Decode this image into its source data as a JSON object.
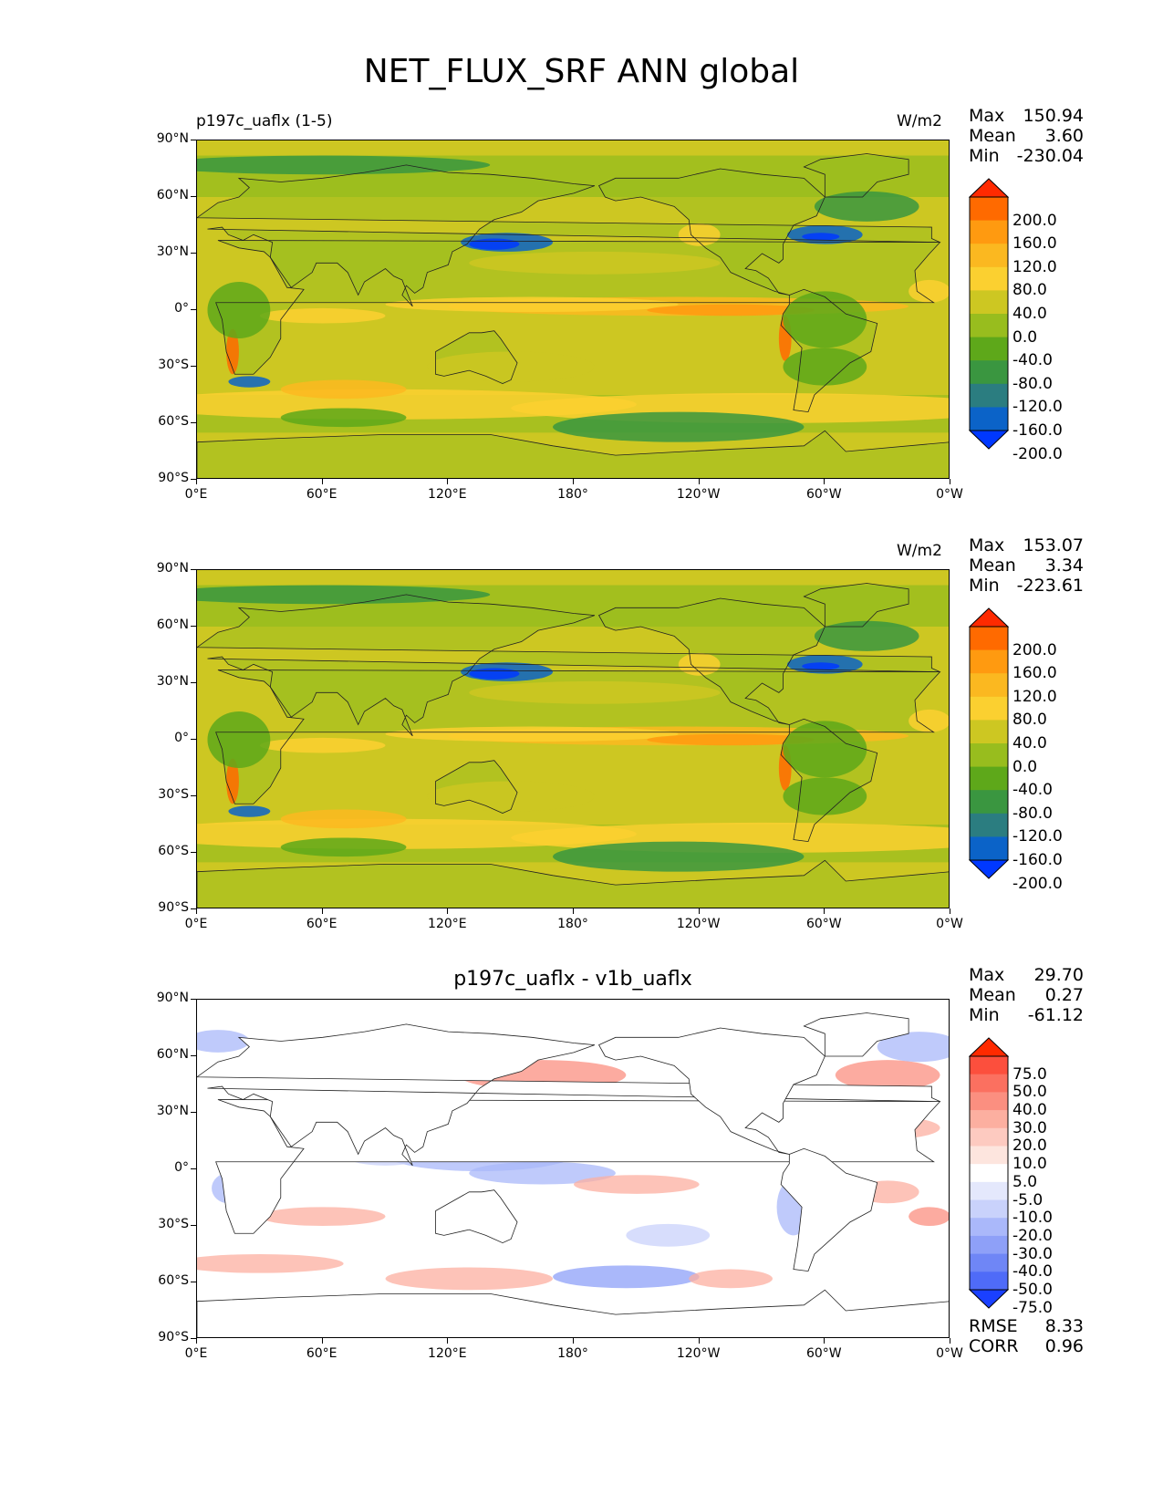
{
  "title": "NET_FLUX_SRF ANN global",
  "lat_ticks": [
    "90°N",
    "60°N",
    "30°N",
    "0°",
    "30°S",
    "60°S",
    "90°S"
  ],
  "lon_ticks": [
    "0°E",
    "60°E",
    "120°E",
    "180°",
    "120°W",
    "60°W",
    "0°W"
  ],
  "panels": [
    {
      "left_label": "p197c_uaflx (1-5)",
      "center_label": "",
      "units": "W/m2",
      "stats": [
        {
          "label": "Max",
          "value": "150.94"
        },
        {
          "label": "Mean",
          "value": "3.60"
        },
        {
          "label": "Min",
          "value": "-230.04"
        }
      ],
      "colorbar_labels": [
        "200.0",
        "160.0",
        "120.0",
        "80.0",
        "40.0",
        "0.0",
        "-40.0",
        "-80.0",
        "-120.0",
        "-160.0",
        "-200.0"
      ],
      "colorbar_colors": [
        "#ff2a00",
        "#ff6a00",
        "#ff9a10",
        "#fbb820",
        "#fbd030",
        "#cdc722",
        "#98bd1e",
        "#5ea81a",
        "#3a9640",
        "#2b7d80",
        "#0b63c8",
        "#0038ff"
      ]
    },
    {
      "left_label": "",
      "center_label": "",
      "units": "W/m2",
      "stats": [
        {
          "label": "Max",
          "value": "153.07"
        },
        {
          "label": "Mean",
          "value": "3.34"
        },
        {
          "label": "Min",
          "value": "-223.61"
        }
      ],
      "colorbar_labels": [
        "200.0",
        "160.0",
        "120.0",
        "80.0",
        "40.0",
        "0.0",
        "-40.0",
        "-80.0",
        "-120.0",
        "-160.0",
        "-200.0"
      ],
      "colorbar_colors": [
        "#ff2a00",
        "#ff6a00",
        "#ff9a10",
        "#fbb820",
        "#fbd030",
        "#cdc722",
        "#98bd1e",
        "#5ea81a",
        "#3a9640",
        "#2b7d80",
        "#0b63c8",
        "#0038ff"
      ]
    },
    {
      "left_label": "",
      "center_label": "p197c_uaflx - v1b_uaflx",
      "units": "",
      "stats": [
        {
          "label": "Max",
          "value": "29.70"
        },
        {
          "label": "Mean",
          "value": "0.27"
        },
        {
          "label": "Min",
          "value": "-61.12"
        }
      ],
      "colorbar_labels": [
        "75.0",
        "50.0",
        "40.0",
        "30.0",
        "20.0",
        "10.0",
        "5.0",
        "-5.0",
        "-10.0",
        "-20.0",
        "-30.0",
        "-40.0",
        "-50.0",
        "-75.0"
      ],
      "colorbar_colors": [
        "#ff2a00",
        "#fc4f3d",
        "#fb7060",
        "#fb8f80",
        "#fcafa0",
        "#fdcac0",
        "#fde5de",
        "#ffffff",
        "#e4e8fc",
        "#c9d2fb",
        "#aab8fa",
        "#8ea0f8",
        "#6f86f6",
        "#4f6bf8",
        "#1a40ff"
      ],
      "rmse": {
        "label": "RMSE",
        "value": "8.33"
      },
      "corr": {
        "label": "CORR",
        "value": "0.96"
      }
    }
  ],
  "chart_data": [
    {
      "type": "heatmap",
      "title": "NET_FLUX_SRF ANN global",
      "subtitle": "p197c_uaflx (1-5)",
      "units": "W/m2",
      "x_axis": [
        "0°E",
        "60°E",
        "120°E",
        "180°",
        "120°W",
        "60°W",
        "0°W"
      ],
      "y_axis": [
        "90°N",
        "60°N",
        "30°N",
        "0°",
        "30°S",
        "60°S",
        "90°S"
      ],
      "stats": {
        "max": 150.94,
        "mean": 3.6,
        "min": -230.04
      },
      "levels": [
        -200,
        -160,
        -120,
        -80,
        -40,
        0,
        40,
        80,
        120,
        160,
        200
      ]
    },
    {
      "type": "heatmap",
      "units": "W/m2",
      "x_axis": [
        "0°E",
        "60°E",
        "120°E",
        "180°",
        "120°W",
        "60°W",
        "0°W"
      ],
      "y_axis": [
        "90°N",
        "60°N",
        "30°N",
        "0°",
        "30°S",
        "60°S",
        "90°S"
      ],
      "stats": {
        "max": 153.07,
        "mean": 3.34,
        "min": -223.61
      },
      "levels": [
        -200,
        -160,
        -120,
        -80,
        -40,
        0,
        40,
        80,
        120,
        160,
        200
      ]
    },
    {
      "type": "heatmap",
      "title": "p197c_uaflx - v1b_uaflx",
      "x_axis": [
        "0°E",
        "60°E",
        "120°E",
        "180°",
        "120°W",
        "60°W",
        "0°W"
      ],
      "y_axis": [
        "90°N",
        "60°N",
        "30°N",
        "0°",
        "30°S",
        "60°S",
        "90°S"
      ],
      "stats": {
        "max": 29.7,
        "mean": 0.27,
        "min": -61.12,
        "rmse": 8.33,
        "corr": 0.96
      },
      "levels": [
        -75,
        -50,
        -40,
        -30,
        -20,
        -10,
        -5,
        5,
        10,
        20,
        30,
        40,
        50,
        75
      ]
    }
  ]
}
